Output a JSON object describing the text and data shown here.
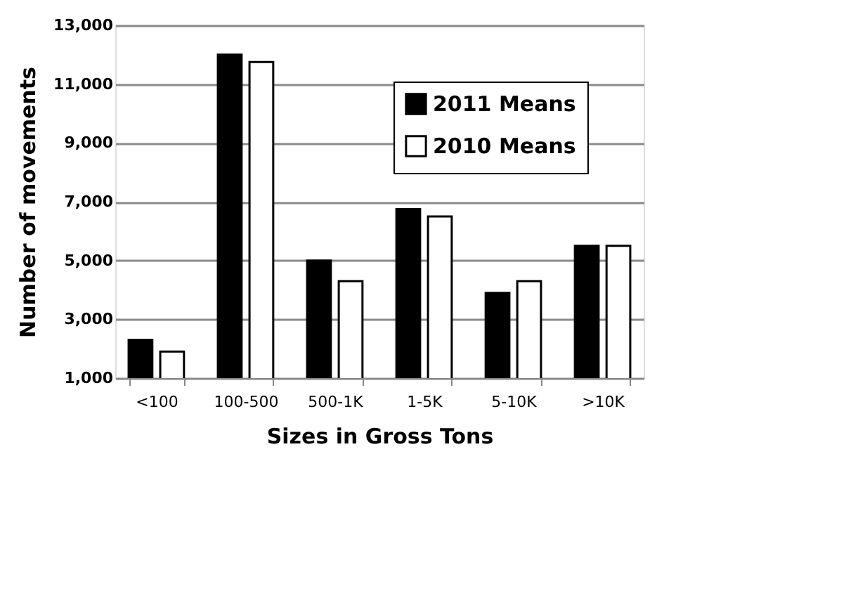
{
  "chart_data": {
    "type": "bar",
    "xlabel": "Sizes in Gross Tons",
    "ylabel": "Number of movements",
    "categories": [
      "<100",
      "100-500",
      "500-1K",
      "1-5K",
      "5-10K",
      ">10K"
    ],
    "series": [
      {
        "name": "2011 Means",
        "color": "#000000",
        "values": [
          2300,
          12000,
          5000,
          6750,
          3900,
          5500
        ]
      },
      {
        "name": "2010 Means",
        "color": "#ffffff",
        "values": [
          1900,
          11750,
          4300,
          6500,
          4300,
          5500
        ]
      }
    ],
    "ylim": [
      1000,
      13000
    ],
    "yticks": [
      {
        "value": 1000,
        "label": "1,000"
      },
      {
        "value": 3000,
        "label": "3,000"
      },
      {
        "value": 5000,
        "label": "5,000"
      },
      {
        "value": 7000,
        "label": "7,000"
      },
      {
        "value": 9000,
        "label": "9,000"
      },
      {
        "value": 11000,
        "label": "11,000"
      },
      {
        "value": 13000,
        "label": "13,000"
      }
    ],
    "grid": "y",
    "legend": "top right"
  }
}
